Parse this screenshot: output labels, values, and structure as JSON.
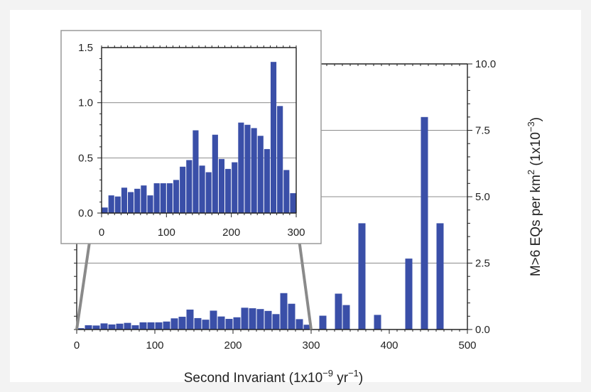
{
  "chart_data": [
    {
      "type": "bar",
      "xlabel": "Second Invariant (1x10",
      "xlabel_exp": "−9",
      "xlabel_unit": " yr",
      "xlabel_unit_exp": "−1",
      "xlabel_close": ")",
      "ylabel": "M>6 EQs per km",
      "ylabel_exp1": "2",
      "ylabel_mid": " (1x10",
      "ylabel_exp2": "−3",
      "ylabel_close": ")",
      "xlim": [
        0,
        500
      ],
      "ylim": [
        0,
        10
      ],
      "xticks": [
        "0",
        "100",
        "200",
        "300",
        "400",
        "500"
      ],
      "yticks": [
        "0.0",
        "2.5",
        "5.0",
        "7.5",
        "10.0"
      ],
      "bin_width": 10,
      "bar_color": "#3a4fa8",
      "bars": [
        {
          "x": 0,
          "y": 0.05
        },
        {
          "x": 10,
          "y": 0.16
        },
        {
          "x": 20,
          "y": 0.15
        },
        {
          "x": 30,
          "y": 0.23
        },
        {
          "x": 40,
          "y": 0.19
        },
        {
          "x": 50,
          "y": 0.22
        },
        {
          "x": 60,
          "y": 0.25
        },
        {
          "x": 70,
          "y": 0.16
        },
        {
          "x": 80,
          "y": 0.27
        },
        {
          "x": 90,
          "y": 0.27
        },
        {
          "x": 100,
          "y": 0.27
        },
        {
          "x": 110,
          "y": 0.3
        },
        {
          "x": 120,
          "y": 0.42
        },
        {
          "x": 130,
          "y": 0.48
        },
        {
          "x": 140,
          "y": 0.75
        },
        {
          "x": 150,
          "y": 0.43
        },
        {
          "x": 160,
          "y": 0.37
        },
        {
          "x": 170,
          "y": 0.71
        },
        {
          "x": 180,
          "y": 0.49
        },
        {
          "x": 190,
          "y": 0.4
        },
        {
          "x": 200,
          "y": 0.46
        },
        {
          "x": 210,
          "y": 0.82
        },
        {
          "x": 220,
          "y": 0.8
        },
        {
          "x": 230,
          "y": 0.77
        },
        {
          "x": 240,
          "y": 0.7
        },
        {
          "x": 250,
          "y": 0.58
        },
        {
          "x": 260,
          "y": 1.37
        },
        {
          "x": 270,
          "y": 0.97
        },
        {
          "x": 280,
          "y": 0.39
        },
        {
          "x": 290,
          "y": 0.18
        },
        {
          "x": 310,
          "y": 0.52
        },
        {
          "x": 330,
          "y": 1.35
        },
        {
          "x": 340,
          "y": 0.92
        },
        {
          "x": 360,
          "y": 4.0
        },
        {
          "x": 380,
          "y": 0.55
        },
        {
          "x": 420,
          "y": 2.67
        },
        {
          "x": 440,
          "y": 8.0
        },
        {
          "x": 460,
          "y": 4.0
        }
      ]
    },
    {
      "type": "bar",
      "xlim": [
        0,
        300
      ],
      "ylim": [
        0,
        1.5
      ],
      "xticks": [
        "0",
        "100",
        "200",
        "300"
      ],
      "yticks": [
        "0.0",
        "0.5",
        "1.0",
        "1.5"
      ],
      "bin_width": 10,
      "bar_color": "#3a4fa8",
      "bars": [
        {
          "x": 0,
          "y": 0.05
        },
        {
          "x": 10,
          "y": 0.16
        },
        {
          "x": 20,
          "y": 0.15
        },
        {
          "x": 30,
          "y": 0.23
        },
        {
          "x": 40,
          "y": 0.19
        },
        {
          "x": 50,
          "y": 0.22
        },
        {
          "x": 60,
          "y": 0.25
        },
        {
          "x": 70,
          "y": 0.16
        },
        {
          "x": 80,
          "y": 0.27
        },
        {
          "x": 90,
          "y": 0.27
        },
        {
          "x": 100,
          "y": 0.27
        },
        {
          "x": 110,
          "y": 0.3
        },
        {
          "x": 120,
          "y": 0.42
        },
        {
          "x": 130,
          "y": 0.48
        },
        {
          "x": 140,
          "y": 0.75
        },
        {
          "x": 150,
          "y": 0.43
        },
        {
          "x": 160,
          "y": 0.37
        },
        {
          "x": 170,
          "y": 0.71
        },
        {
          "x": 180,
          "y": 0.49
        },
        {
          "x": 190,
          "y": 0.4
        },
        {
          "x": 200,
          "y": 0.46
        },
        {
          "x": 210,
          "y": 0.82
        },
        {
          "x": 220,
          "y": 0.8
        },
        {
          "x": 230,
          "y": 0.77
        },
        {
          "x": 240,
          "y": 0.7
        },
        {
          "x": 250,
          "y": 0.58
        },
        {
          "x": 260,
          "y": 1.37
        },
        {
          "x": 270,
          "y": 0.97
        },
        {
          "x": 280,
          "y": 0.39
        },
        {
          "x": 290,
          "y": 0.18
        }
      ]
    }
  ]
}
